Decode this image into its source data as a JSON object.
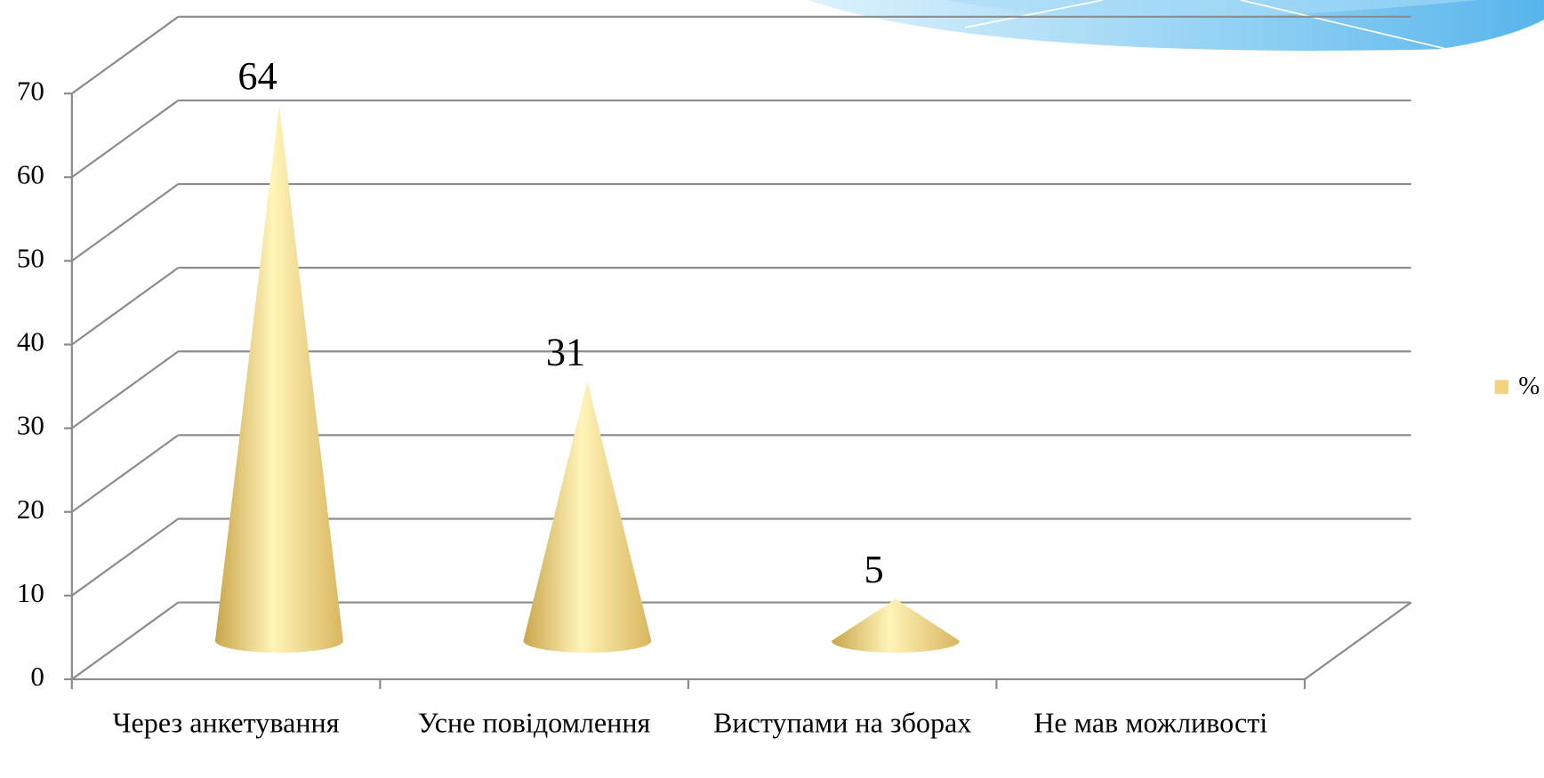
{
  "chart_data": {
    "type": "cone",
    "categories": [
      "Через анкетування",
      "Усне повідомлення",
      "Виступами на зборах",
      "Не мав можливості"
    ],
    "series": [
      {
        "name": "%",
        "color": "#f2d27a",
        "values": [
          64,
          31,
          5,
          null
        ]
      }
    ],
    "ylim": [
      0,
      70
    ],
    "yticks": [
      0,
      10,
      20,
      30,
      40,
      50,
      60,
      70
    ],
    "grid": true,
    "legend": "right"
  }
}
